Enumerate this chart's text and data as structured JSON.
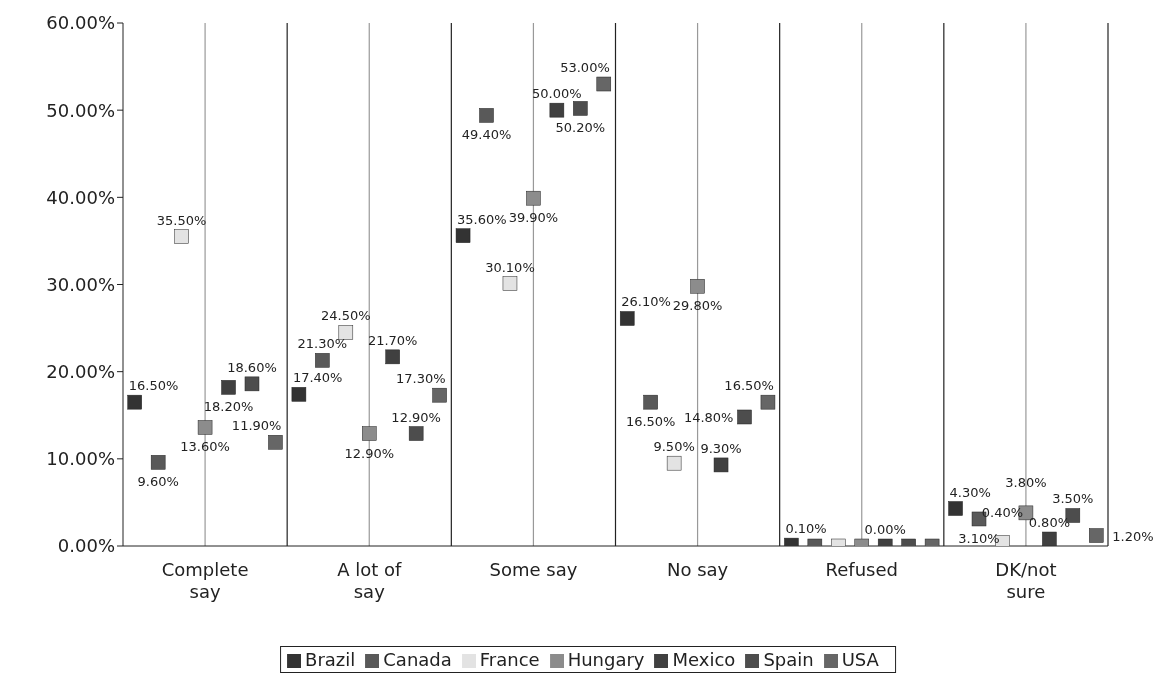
{
  "chart_data": {
    "type": "scatter",
    "categories": [
      "Complete say",
      "A lot of say",
      "Some say",
      "No say",
      "Refused",
      "DK/not sure"
    ],
    "series": [
      {
        "name": "Brazil",
        "color": "#333333",
        "values": [
          16.5,
          17.4,
          35.6,
          26.1,
          0.1,
          4.3
        ],
        "value_labels": [
          "16.50%",
          "17.40%",
          "35.60%",
          "26.10%",
          "0.10%",
          "4.30%"
        ]
      },
      {
        "name": "Canada",
        "color": "#595959",
        "values": [
          9.6,
          21.3,
          49.4,
          16.5,
          0.0,
          3.1
        ],
        "value_labels": [
          "9.60%",
          "21.30%",
          "49.40%",
          "16.50%",
          null,
          "3.10%"
        ]
      },
      {
        "name": "France",
        "color": "#e3e3e3",
        "values": [
          35.5,
          24.5,
          30.1,
          9.5,
          0.0,
          0.4
        ],
        "value_labels": [
          "35.50%",
          "24.50%",
          "30.10%",
          "9.50%",
          null,
          "0.40%"
        ]
      },
      {
        "name": "Hungary",
        "color": "#8c8c8c",
        "values": [
          13.6,
          12.9,
          39.9,
          29.8,
          0.0,
          3.8
        ],
        "value_labels": [
          "13.60%",
          "12.90%",
          "39.90%",
          "29.80%",
          null,
          "3.80%"
        ]
      },
      {
        "name": "Mexico",
        "color": "#404040",
        "values": [
          18.2,
          21.7,
          50.0,
          9.3,
          0.0,
          0.8
        ],
        "value_labels": [
          "18.20%",
          "21.70%",
          "50.00%",
          "9.30%",
          "0.00%",
          "0.80%"
        ]
      },
      {
        "name": "Spain",
        "color": "#4d4d4d",
        "values": [
          18.6,
          12.9,
          50.2,
          14.8,
          0.0,
          3.5
        ],
        "value_labels": [
          "18.60%",
          "12.90%",
          "50.20%",
          "14.80%",
          null,
          "3.50%"
        ]
      },
      {
        "name": "USA",
        "color": "#666666",
        "values": [
          11.9,
          17.3,
          53.0,
          16.5,
          0.0,
          1.2
        ],
        "value_labels": [
          "11.90%",
          "17.30%",
          "53.00%",
          "16.50%",
          null,
          "1.20%"
        ]
      }
    ],
    "ylim": [
      0,
      60
    ],
    "yticks": [
      {
        "value": 0,
        "label": "0.00%"
      },
      {
        "value": 10,
        "label": "10.00%"
      },
      {
        "value": 20,
        "label": "20.00%"
      },
      {
        "value": 30,
        "label": "30.00%"
      },
      {
        "value": 40,
        "label": "40.00%"
      },
      {
        "value": 50,
        "label": "50.00%"
      },
      {
        "value": 60,
        "label": "60.00%"
      }
    ],
    "grid": "x",
    "legend": "bottom",
    "marker": "square"
  }
}
